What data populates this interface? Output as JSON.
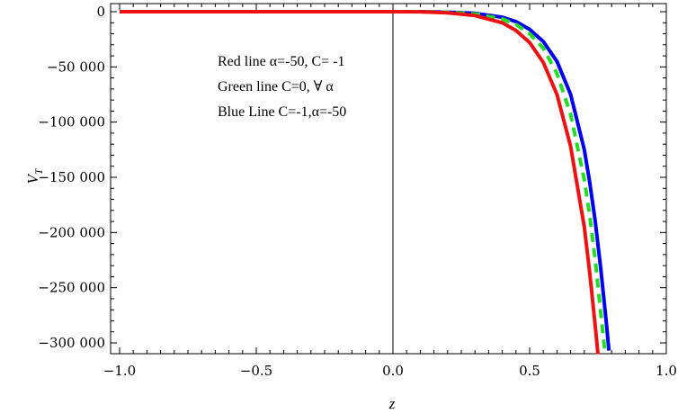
{
  "chart_data": {
    "type": "line",
    "title": "",
    "xlabel": "z",
    "ylabel": "V",
    "ylabel_sub": "T",
    "xlim": [
      -1.0,
      1.0
    ],
    "ylim": [
      -310000,
      3000
    ],
    "x_ticks": [
      -1.0,
      -0.5,
      0.0,
      0.5,
      1.0
    ],
    "x_tick_labels": [
      "−1.0",
      "−0.5",
      "0.0",
      "0.5",
      "1.0"
    ],
    "y_ticks": [
      0,
      -50000,
      -100000,
      -150000,
      -200000,
      -250000,
      -300000
    ],
    "y_tick_labels": [
      "0",
      "−50 000",
      "−100 000",
      "−150 000",
      "−200 000",
      "−250 000",
      "−300 000"
    ],
    "grid": false,
    "legend_placement": "top-center (text annotation)",
    "annotations": [
      "Red line α=-50, C= -1",
      "Green line C=0, ∀ α",
      "Blue Line C=-1,α=-50"
    ],
    "series": [
      {
        "color": "#0000ee",
        "style": "solid",
        "x": [
          -1.0,
          -0.5,
          0.0,
          0.1,
          0.2,
          0.3,
          0.4,
          0.45,
          0.5,
          0.55,
          0.6,
          0.65,
          0.7,
          0.72,
          0.74,
          0.76,
          0.78,
          0.79
        ],
        "y": [
          0,
          0,
          0,
          0,
          -400,
          -1500,
          -5000,
          -9000,
          -16000,
          -27000,
          -45000,
          -75000,
          -125000,
          -155000,
          -190000,
          -232000,
          -280000,
          -307000
        ]
      },
      {
        "color": "#22dd22",
        "style": "dashed",
        "x": [
          -1.0,
          -0.5,
          0.0,
          0.1,
          0.2,
          0.3,
          0.4,
          0.45,
          0.5,
          0.55,
          0.6,
          0.65,
          0.7,
          0.72,
          0.74,
          0.76,
          0.775
        ],
        "y": [
          0,
          0,
          0,
          0,
          -500,
          -2000,
          -6500,
          -11500,
          -20000,
          -33000,
          -56000,
          -93000,
          -152000,
          -185000,
          -225000,
          -272000,
          -307000
        ]
      },
      {
        "color": "#ee1111",
        "style": "solid",
        "x": [
          -1.0,
          -0.5,
          0.0,
          0.1,
          0.2,
          0.3,
          0.4,
          0.45,
          0.5,
          0.55,
          0.6,
          0.65,
          0.7,
          0.72,
          0.74,
          0.75
        ],
        "y": [
          0,
          0,
          0,
          -100,
          -1000,
          -3500,
          -10000,
          -17000,
          -28000,
          -46000,
          -75000,
          -122000,
          -195000,
          -237000,
          -285000,
          -310000
        ]
      }
    ]
  }
}
